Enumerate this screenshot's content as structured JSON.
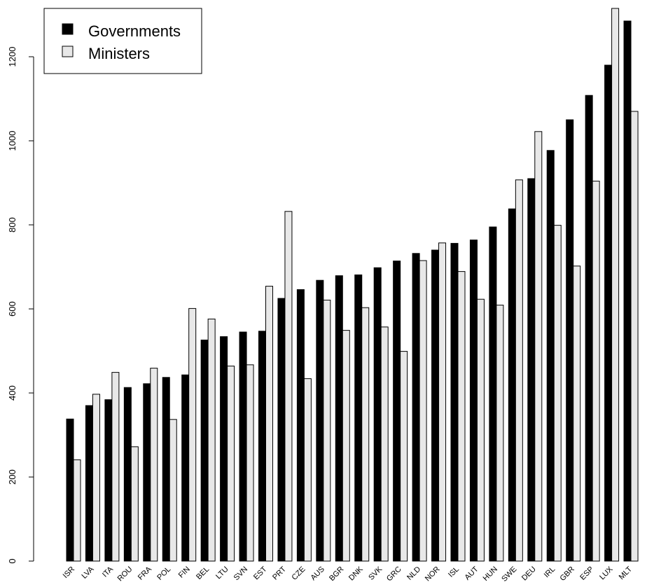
{
  "chart_data": {
    "type": "bar",
    "categories": [
      "ISR",
      "LVA",
      "ITA",
      "ROU",
      "FRA",
      "POL",
      "FIN",
      "BEL",
      "LTU",
      "SVN",
      "EST",
      "PRT",
      "CZE",
      "AUS",
      "BGR",
      "DNK",
      "SVK",
      "GRC",
      "NLD",
      "NOR",
      "ISL",
      "AUT",
      "HUN",
      "SWE",
      "DEU",
      "IRL",
      "GBR",
      "ESP",
      "LUX",
      "MLT"
    ],
    "series": [
      {
        "name": "Governments",
        "color": "#000000",
        "values": [
          338,
          370,
          384,
          413,
          422,
          437,
          443,
          526,
          534,
          545,
          547,
          625,
          646,
          668,
          679,
          681,
          698,
          714,
          732,
          740,
          756,
          764,
          795,
          838,
          910,
          977,
          1050,
          1108,
          1180,
          1285
        ]
      },
      {
        "name": "Ministers",
        "color": "#e8e8e8",
        "values": [
          241,
          397,
          449,
          272,
          459,
          337,
          601,
          576,
          464,
          467,
          654,
          832,
          434,
          621,
          549,
          603,
          557,
          499,
          715,
          757,
          689,
          623,
          609,
          907,
          1022,
          799,
          702,
          904,
          1315,
          1070
        ]
      }
    ],
    "yticks": [
      0,
      200,
      400,
      600,
      800,
      1000,
      1200
    ],
    "ylim": [
      0,
      1315
    ],
    "legend": {
      "position": "top-left",
      "entries": [
        "Governments",
        "Ministers"
      ]
    },
    "grid": false
  }
}
